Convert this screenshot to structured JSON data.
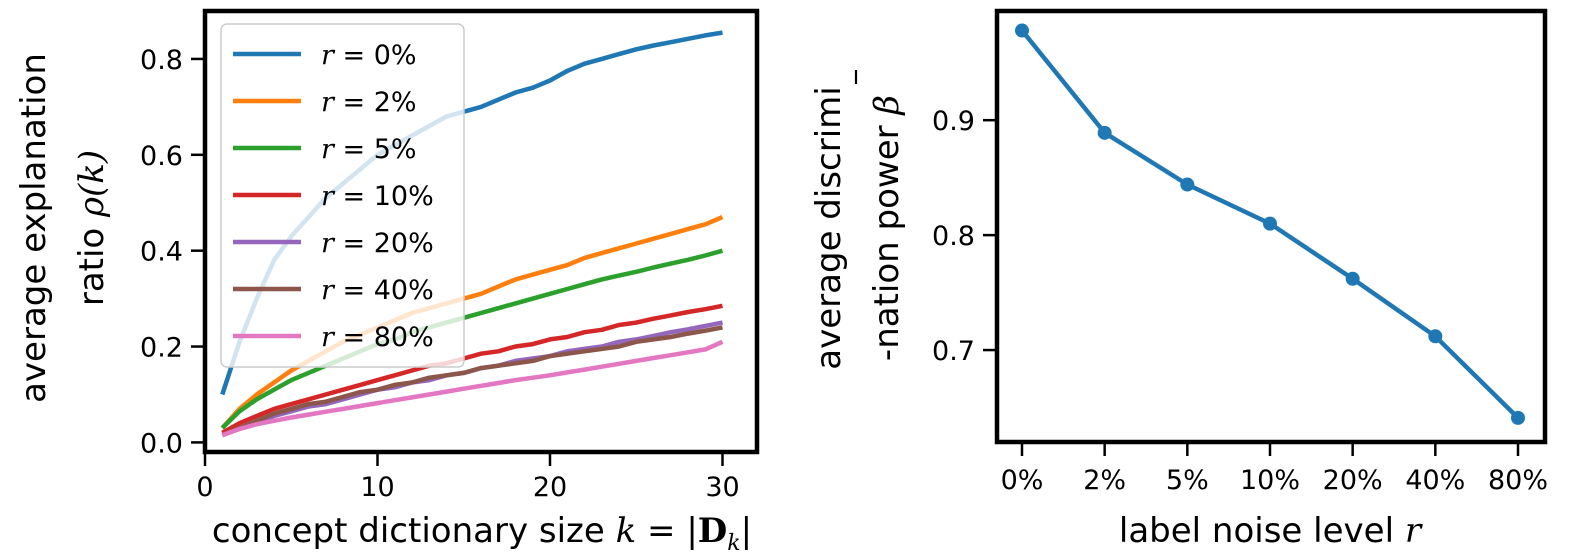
{
  "chart_data": [
    {
      "type": "line",
      "title": "",
      "ylabel_line1": "average explanation",
      "ylabel_line2": "ratio ρ(k)",
      "ylabel_line2_text": "ratio ",
      "ylabel_line2_math": "ρ(k)",
      "xlabel_text": "concept dictionary size ",
      "xlabel_math_k": "k",
      "xlabel_eq": " = |",
      "xlabel_bold": "D",
      "xlabel_sub": "k",
      "xlabel_end": "|",
      "xlim": [
        0,
        32
      ],
      "ylim": [
        -0.02,
        0.9
      ],
      "xticks": [
        0,
        10,
        20,
        30
      ],
      "yticks": [
        0.0,
        0.2,
        0.4,
        0.6,
        0.8
      ],
      "ytick_labels": [
        "0.0",
        "0.2",
        "0.4",
        "0.6",
        "0.8"
      ],
      "legend_position": "upper-left",
      "x": [
        1,
        2,
        3,
        4,
        5,
        6,
        7,
        8,
        9,
        10,
        11,
        12,
        13,
        14,
        15,
        16,
        17,
        18,
        19,
        20,
        21,
        22,
        23,
        24,
        25,
        26,
        27,
        28,
        29,
        30
      ],
      "series": [
        {
          "name": "r = 0%",
          "r_label": "r",
          "pct": "0%",
          "color": "#1f77b4",
          "values": [
            0.1,
            0.21,
            0.3,
            0.38,
            0.43,
            0.47,
            0.51,
            0.54,
            0.57,
            0.6,
            0.62,
            0.64,
            0.66,
            0.68,
            0.69,
            0.7,
            0.715,
            0.73,
            0.74,
            0.755,
            0.775,
            0.79,
            0.8,
            0.81,
            0.82,
            0.828,
            0.835,
            0.842,
            0.849,
            0.855
          ]
        },
        {
          "name": "r = 2%",
          "r_label": "r",
          "pct": "2%",
          "color": "#ff7f0e",
          "values": [
            0.03,
            0.07,
            0.1,
            0.125,
            0.15,
            0.17,
            0.19,
            0.21,
            0.225,
            0.24,
            0.255,
            0.27,
            0.28,
            0.29,
            0.3,
            0.31,
            0.325,
            0.34,
            0.35,
            0.36,
            0.37,
            0.385,
            0.395,
            0.405,
            0.415,
            0.425,
            0.435,
            0.445,
            0.455,
            0.47
          ]
        },
        {
          "name": "r = 5%",
          "r_label": "r",
          "pct": "5%",
          "color": "#2ca02c",
          "values": [
            0.03,
            0.065,
            0.09,
            0.11,
            0.13,
            0.145,
            0.16,
            0.175,
            0.19,
            0.205,
            0.215,
            0.23,
            0.24,
            0.25,
            0.26,
            0.27,
            0.28,
            0.29,
            0.3,
            0.31,
            0.32,
            0.33,
            0.34,
            0.348,
            0.356,
            0.365,
            0.373,
            0.381,
            0.39,
            0.4
          ]
        },
        {
          "name": "r = 10%",
          "r_label": "r",
          "pct": "10%",
          "color": "#d62728",
          "values": [
            0.02,
            0.04,
            0.055,
            0.07,
            0.08,
            0.09,
            0.1,
            0.11,
            0.12,
            0.13,
            0.14,
            0.15,
            0.16,
            0.165,
            0.175,
            0.185,
            0.19,
            0.2,
            0.205,
            0.215,
            0.22,
            0.23,
            0.235,
            0.245,
            0.25,
            0.258,
            0.265,
            0.272,
            0.278,
            0.285
          ]
        },
        {
          "name": "r = 20%",
          "r_label": "r",
          "pct": "20%",
          "color": "#9467bd",
          "values": [
            0.015,
            0.03,
            0.04,
            0.055,
            0.065,
            0.075,
            0.08,
            0.09,
            0.1,
            0.11,
            0.115,
            0.125,
            0.13,
            0.14,
            0.145,
            0.155,
            0.16,
            0.17,
            0.175,
            0.18,
            0.19,
            0.195,
            0.2,
            0.21,
            0.215,
            0.222,
            0.23,
            0.236,
            0.243,
            0.25
          ]
        },
        {
          "name": "r = 40%",
          "r_label": "r",
          "pct": "40%",
          "color": "#8c564b",
          "values": [
            0.015,
            0.03,
            0.045,
            0.06,
            0.07,
            0.08,
            0.085,
            0.095,
            0.105,
            0.11,
            0.12,
            0.125,
            0.135,
            0.14,
            0.145,
            0.155,
            0.16,
            0.165,
            0.17,
            0.18,
            0.185,
            0.19,
            0.195,
            0.2,
            0.21,
            0.215,
            0.22,
            0.227,
            0.233,
            0.24
          ]
        },
        {
          "name": "r = 80%",
          "r_label": "r",
          "pct": "80%",
          "color": "#e377c2",
          "values": [
            0.015,
            0.028,
            0.038,
            0.045,
            0.052,
            0.058,
            0.064,
            0.07,
            0.076,
            0.082,
            0.088,
            0.094,
            0.1,
            0.106,
            0.112,
            0.118,
            0.124,
            0.13,
            0.135,
            0.14,
            0.146,
            0.152,
            0.158,
            0.164,
            0.17,
            0.176,
            0.182,
            0.188,
            0.194,
            0.21
          ]
        }
      ]
    },
    {
      "type": "line",
      "title": "",
      "ylabel_line1": "average discrimi",
      "ylabel_line2": "-nation power β̄",
      "ylabel_line2_text": "-nation power ",
      "ylabel_line2_math": "β",
      "xlabel_text": "label noise level ",
      "xlabel_math": "r",
      "categories": [
        "0%",
        "2%",
        "5%",
        "10%",
        "20%",
        "40%",
        "80%"
      ],
      "values": [
        0.978,
        0.889,
        0.844,
        0.81,
        0.762,
        0.712,
        0.641
      ],
      "ylim": [
        0.62,
        0.995
      ],
      "yticks": [
        0.7,
        0.8,
        0.9
      ],
      "ytick_labels": [
        "0.7",
        "0.8",
        "0.9"
      ],
      "color": "#1f77b4"
    }
  ]
}
